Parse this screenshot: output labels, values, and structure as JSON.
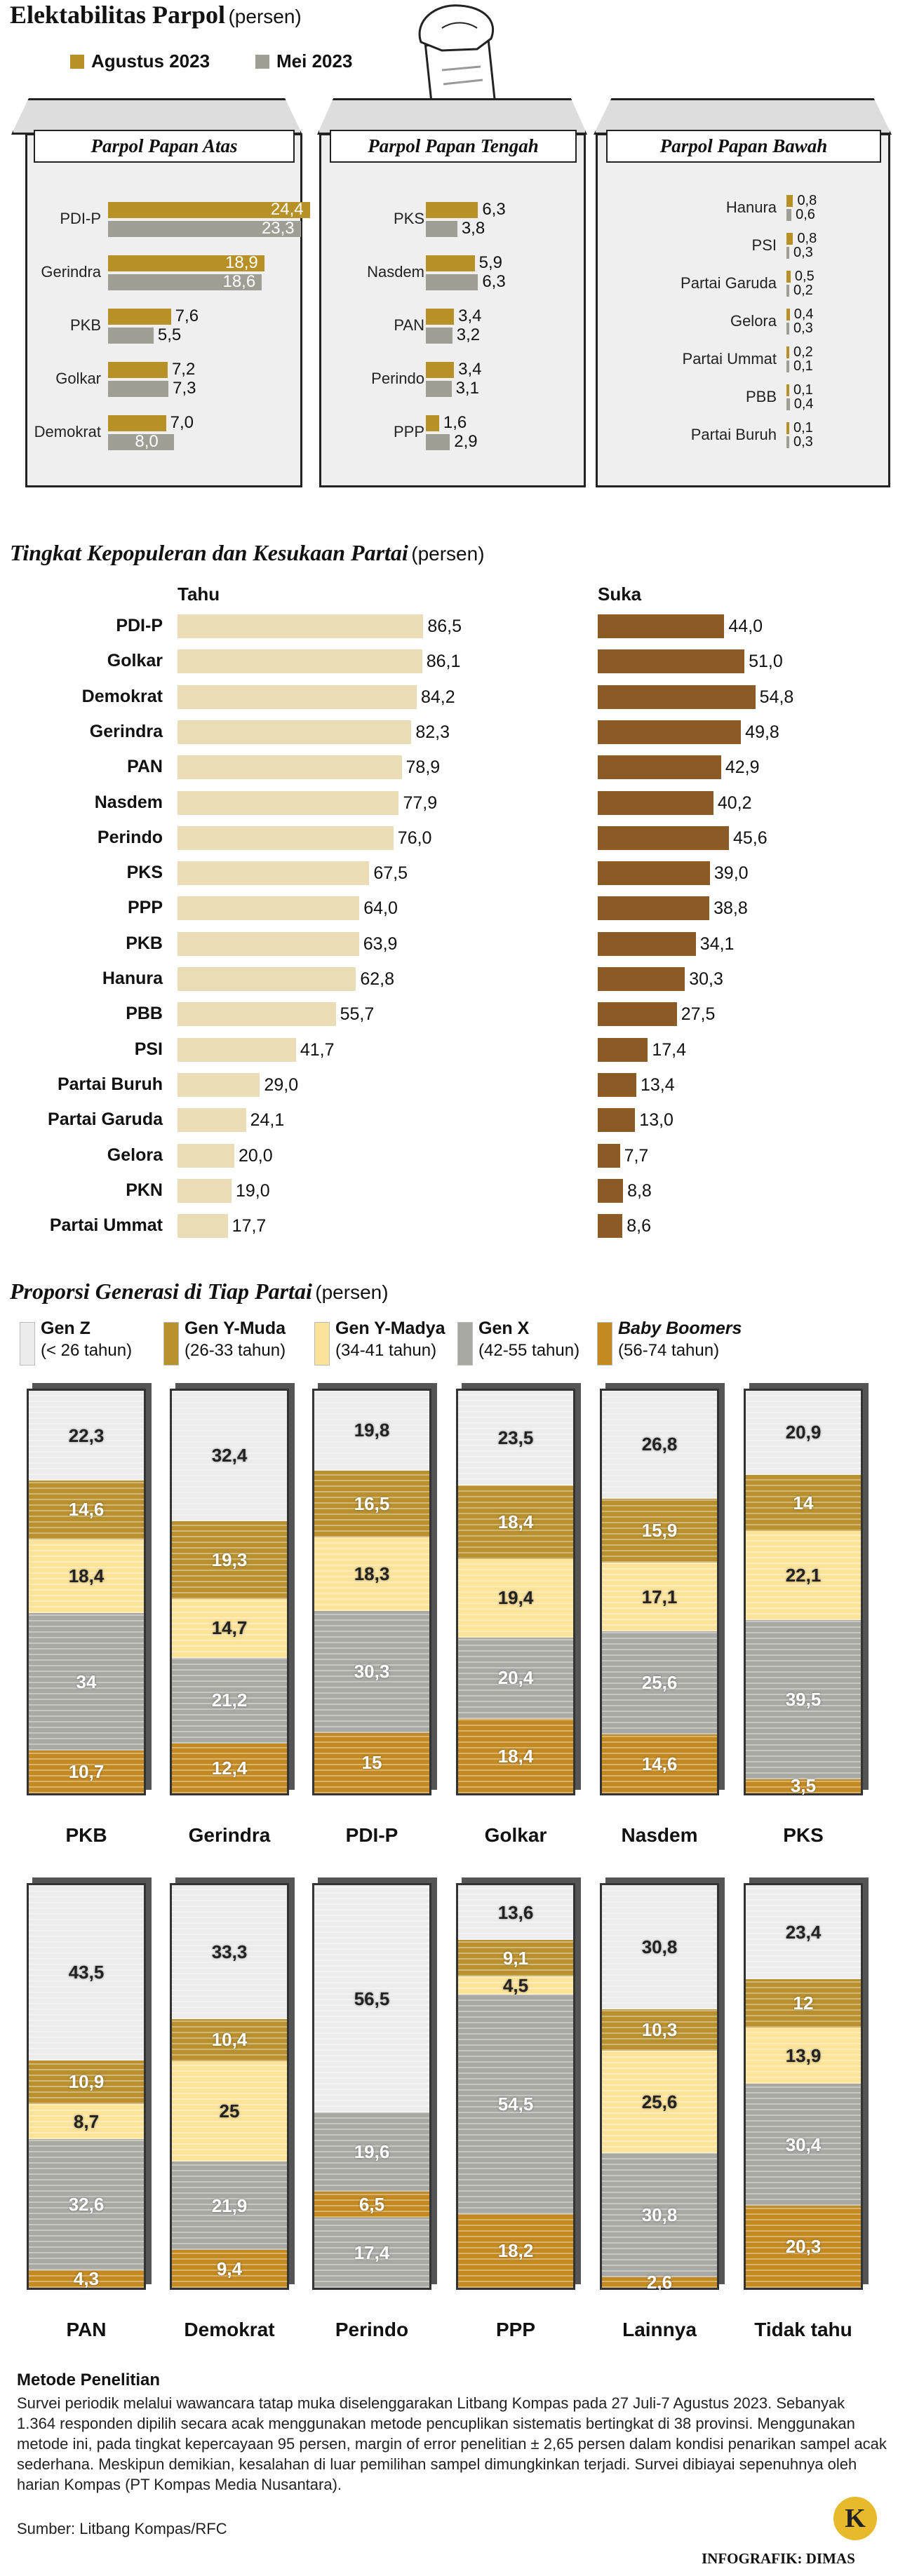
{
  "colors": {
    "agustus": "#b89028",
    "mei": "#9e9e95",
    "tahu": "#eadcb4",
    "suka": "#8b5a26",
    "gen_z": "#ececec",
    "gen_y_muda": "#b8902e",
    "gen_y_madya": "#fce39a",
    "gen_x": "#a9a9a3",
    "baby_boomers": "#c48a22"
  },
  "section1": {
    "title": "Elektabilitas Parpol",
    "unit": "(persen)",
    "legend": {
      "agustus": "Agustus 2023",
      "mei": "Mei 2023"
    }
  },
  "section2": {
    "title": "Tingkat Kepopuleran dan Kesukaan Partai",
    "unit": "(persen)",
    "col_tahu": "Tahu",
    "col_suka": "Suka"
  },
  "section3": {
    "title": "Proporsi Generasi di Tiap Partai",
    "unit": "(persen)",
    "legend": [
      {
        "name": "Gen Z",
        "range": "(< 26 tahun)",
        "key": "gen_z"
      },
      {
        "name": "Gen Y-Muda",
        "range": "(26-33 tahun)",
        "key": "gen_y_muda"
      },
      {
        "name": "Gen Y-Madya",
        "range": "(34-41 tahun)",
        "key": "gen_y_madya"
      },
      {
        "name": "Gen X",
        "range": "(42-55 tahun)",
        "key": "gen_x"
      },
      {
        "name": "Baby Boomers",
        "range": "(56-74 tahun)",
        "key": "baby_boomers"
      }
    ]
  },
  "footer": {
    "method_title": "Metode Penelitian",
    "method_text": "Survei periodik melalui wawancara tatap muka diselenggarakan Litbang Kompas pada 27 Juli-7 Agustus 2023. Sebanyak 1.364 responden dipilih secara acak menggunakan metode pencuplikan sistematis bertingkat di 38 provinsi. Menggunakan metode ini, pada tingkat kepercayaan 95 persen, margin of error penelitian ± 2,65 persen dalam kondisi penarikan sampel acak sederhana. Meskipun demikian, kesalahan di luar pemilihan sampel dimungkinkan terjadi. Survei dibiayai sepenuhnya oleh harian Kompas (PT Kompas Media Nusantara).",
    "source": "Sumber: Litbang Kompas/RFC",
    "credit": "INFOGRAFIK: DIMAS",
    "logo_letter": "K"
  },
  "chart_data": [
    {
      "type": "bar",
      "title": "Parpol Papan Atas",
      "categories": [
        "PDI-P",
        "Gerindra",
        "PKB",
        "Golkar",
        "Demokrat"
      ],
      "series": [
        {
          "name": "Agustus 2023",
          "values": [
            "24,4",
            "18,9",
            "7,6",
            "7,2",
            "7,0"
          ]
        },
        {
          "name": "Mei 2023",
          "values": [
            "23,3",
            "18,6",
            "5,5",
            "7,3",
            "8,0"
          ]
        }
      ],
      "xlim": [
        0,
        25
      ]
    },
    {
      "type": "bar",
      "title": "Parpol Papan Tengah",
      "categories": [
        "PKS",
        "Nasdem",
        "PAN",
        "Perindo",
        "PPP"
      ],
      "series": [
        {
          "name": "Agustus 2023",
          "values": [
            "6,3",
            "5,9",
            "3,4",
            "3,4",
            "1,6"
          ]
        },
        {
          "name": "Mei 2023",
          "values": [
            "3,8",
            "6,3",
            "3,2",
            "3,1",
            "2,9"
          ]
        }
      ],
      "xlim": [
        0,
        25
      ]
    },
    {
      "type": "bar",
      "title": "Parpol Papan Bawah",
      "categories": [
        "Hanura",
        "PSI",
        "Partai Garuda",
        "Gelora",
        "Partai Ummat",
        "PBB",
        "Partai Buruh"
      ],
      "series": [
        {
          "name": "Agustus 2023",
          "values": [
            "0,8",
            "0,8",
            "0,5",
            "0,4",
            "0,2",
            "0,1",
            "0,1"
          ]
        },
        {
          "name": "Mei 2023",
          "values": [
            "0,6",
            "0,3",
            "0,2",
            "0,3",
            "0,1",
            "0,4",
            "0,3"
          ]
        }
      ],
      "xlim": [
        0,
        25
      ]
    },
    {
      "type": "bar",
      "title": "Tingkat Kepopuleran dan Kesukaan Partai",
      "categories": [
        "PDI-P",
        "Golkar",
        "Demokrat",
        "Gerindra",
        "PAN",
        "Nasdem",
        "Perindo",
        "PKS",
        "PPP",
        "PKB",
        "Hanura",
        "PBB",
        "PSI",
        "Partai Buruh",
        "Partai Garuda",
        "Gelora",
        "PKN",
        "Partai Ummat"
      ],
      "series": [
        {
          "name": "Tahu",
          "values": [
            "86,5",
            "86,1",
            "84,2",
            "82,3",
            "78,9",
            "77,9",
            "76,0",
            "67,5",
            "64,0",
            "63,9",
            "62,8",
            "55,7",
            "41,7",
            "29,0",
            "24,1",
            "20,0",
            "19,0",
            "17,7"
          ]
        },
        {
          "name": "Suka",
          "values": [
            "44,0",
            "51,0",
            "54,8",
            "49,8",
            "42,9",
            "40,2",
            "45,6",
            "39,0",
            "38,8",
            "34,1",
            "30,3",
            "27,5",
            "17,4",
            "13,4",
            "13,0",
            "7,7",
            "8,8",
            "8,6"
          ]
        }
      ]
    },
    {
      "type": "bar",
      "title": "Proporsi Generasi di Tiap Partai",
      "stacked": true,
      "categories": [
        "PKB",
        "Gerindra",
        "PDI-P",
        "Golkar",
        "Nasdem",
        "PKS",
        "PAN",
        "Demokrat",
        "Perindo",
        "PPP",
        "Lainnya",
        "Tidak tahu"
      ],
      "series": [
        {
          "name": "Gen Z",
          "values": [
            "22,3",
            "32,4",
            "19,8",
            "23,5",
            "26,8",
            "20,9",
            "43,5",
            "33,3",
            "56,5",
            "13,6",
            "30,8",
            "23,4"
          ]
        },
        {
          "name": "Gen Y-Muda",
          "values": [
            "14,6",
            "19,3",
            "16,5",
            "18,4",
            "15,9",
            "14",
            "10,9",
            "10,4",
            null,
            "9,1",
            "10,3",
            "12"
          ]
        },
        {
          "name": "Gen Y-Madya",
          "values": [
            "18,4",
            "14,7",
            "18,3",
            "19,4",
            "17,1",
            "22,1",
            "8,7",
            "25",
            null,
            "4,5",
            "25,6",
            "13,9"
          ]
        },
        {
          "name": "Gen X",
          "values": [
            "34",
            "21,2",
            "30,3",
            "20,4",
            "25,6",
            "39,5",
            "32,6",
            "21,9",
            "19,6",
            "54,5",
            "30,8",
            "30,4"
          ]
        },
        {
          "name": "Baby Boomers",
          "values": [
            "10,7",
            "12,4",
            "15",
            "18,4",
            "14,6",
            "3,5",
            "4,3",
            "9,4",
            "6,5",
            "18,2",
            "2,6",
            "20,3"
          ]
        }
      ],
      "extra_segments": {
        "Perindo": {
          "Gen X tail": "17,4"
        }
      }
    }
  ]
}
